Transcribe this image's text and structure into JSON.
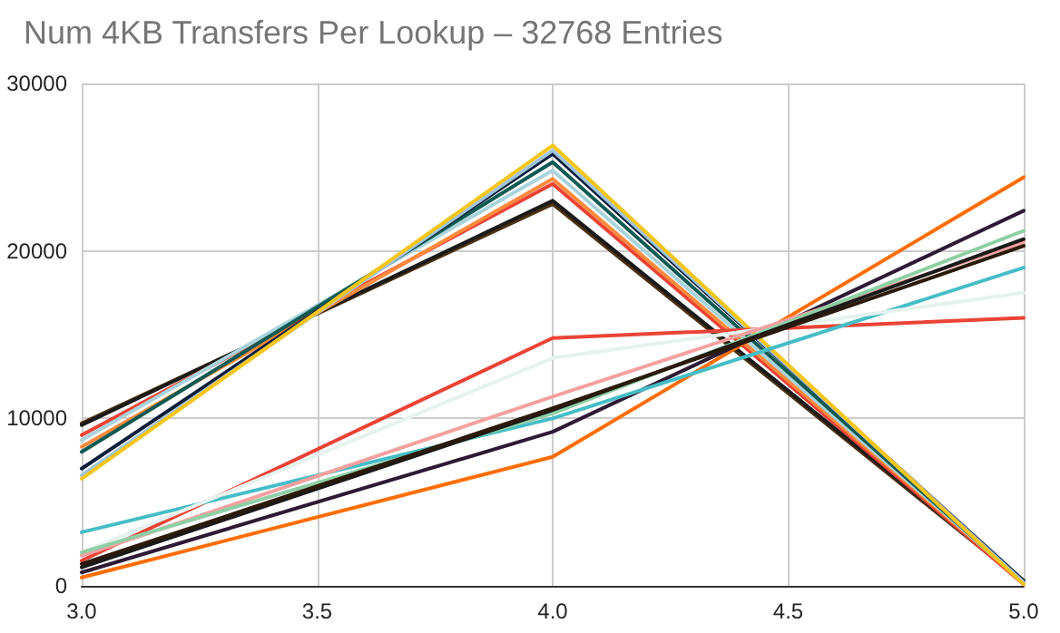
{
  "chart_data": {
    "type": "line",
    "title": "Num 4KB Transfers Per Lookup – 32768 Entries",
    "x": [
      3,
      4,
      5
    ],
    "xlim": [
      3,
      5
    ],
    "xticks": [
      {
        "value": 3,
        "label": "3.0"
      },
      {
        "value": 3.5,
        "label": "3.5"
      },
      {
        "value": 4,
        "label": "4.0"
      },
      {
        "value": 4.5,
        "label": "4.5"
      },
      {
        "value": 5,
        "label": "5.0"
      }
    ],
    "ylim": [
      0,
      30000
    ],
    "yticks": [
      0,
      10000,
      20000,
      30000
    ],
    "grid": true,
    "marker": "none",
    "line_style": "solid",
    "series": [
      {
        "color": "#4a3110",
        "values": [
          9700,
          22800,
          200
        ]
      },
      {
        "color": "#1a1a1a",
        "values": [
          9600,
          23000,
          300
        ]
      },
      {
        "color": "#ea4335",
        "values": [
          9000,
          24000,
          100
        ]
      },
      {
        "color": "#ff8a3d",
        "values": [
          8300,
          24300,
          200
        ]
      },
      {
        "color": "#a9d4dc",
        "values": [
          8700,
          24800,
          200
        ]
      },
      {
        "color": "#0f5a52",
        "values": [
          8000,
          25300,
          200
        ]
      },
      {
        "color": "#0c1e3a",
        "values": [
          7000,
          25800,
          300
        ]
      },
      {
        "color": "#a0c4e0",
        "values": [
          6600,
          26000,
          200
        ]
      },
      {
        "color": "#f5c518",
        "values": [
          6400,
          26300,
          100
        ]
      },
      {
        "color": "#ff6d01",
        "values": [
          500,
          7700,
          24400
        ]
      },
      {
        "color": "#2d1a33",
        "values": [
          800,
          9200,
          22400
        ]
      },
      {
        "color": "#ea4335",
        "values": [
          1500,
          14800,
          16000
        ]
      },
      {
        "color": "#46bdc6",
        "values": [
          3200,
          10000,
          19000
        ]
      },
      {
        "color": "#e6f2ee",
        "values": [
          2000,
          13600,
          17500
        ]
      },
      {
        "color": "#f4a0a0",
        "values": [
          1800,
          11300,
          20500
        ]
      },
      {
        "color": "#8fcfa5",
        "values": [
          2000,
          10300,
          21200
        ]
      },
      {
        "color": "#1a1a1a",
        "values": [
          1100,
          10500,
          20700
        ]
      },
      {
        "color": "#2a1a0a",
        "values": [
          1300,
          10600,
          20300
        ]
      }
    ]
  }
}
